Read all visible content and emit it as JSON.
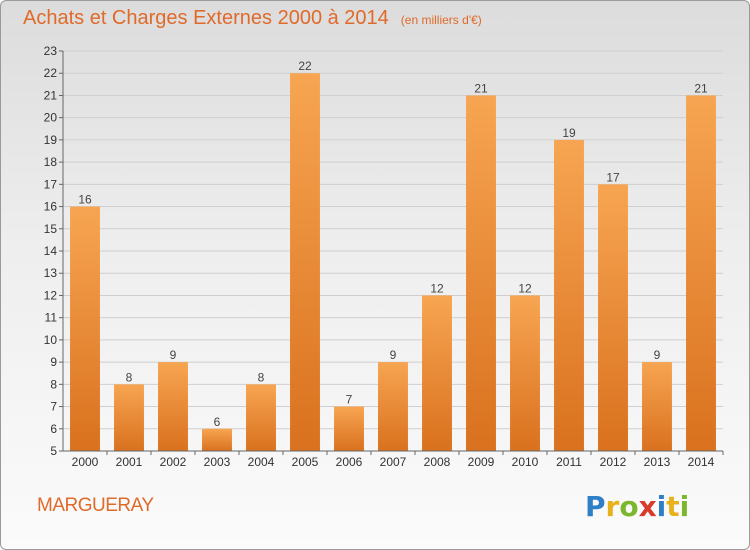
{
  "header": {
    "title": "Achats et Charges Externes 2000 à 2014",
    "subtitle": "(en milliers d'€)"
  },
  "commune": "MARGUERAY",
  "logo": {
    "text": "Proxiti",
    "letters": [
      {
        "ch": "P",
        "color": "#2f7fc8"
      },
      {
        "ch": "r",
        "color": "#e8b21c"
      },
      {
        "ch": "o",
        "color": "#7bb62d"
      },
      {
        "ch": "x",
        "color": "#d63b2b"
      },
      {
        "ch": "i",
        "color": "#2f7fc8"
      },
      {
        "ch": "t",
        "color": "#e8b21c"
      },
      {
        "ch": "i",
        "color": "#7bb62d"
      }
    ]
  },
  "colors": {
    "accent": "#e06a2a",
    "bar_light": "#f7a552",
    "bar_dark": "#d9711e"
  },
  "chart_data": {
    "type": "bar",
    "title": "Achats et Charges Externes 2000 à 2014",
    "subtitle": "(en milliers d'€)",
    "categories": [
      "2000",
      "2001",
      "2002",
      "2003",
      "2004",
      "2005",
      "2006",
      "2007",
      "2008",
      "2009",
      "2010",
      "2011",
      "2012",
      "2013",
      "2014"
    ],
    "values": [
      16,
      8,
      9,
      6,
      8,
      22,
      7,
      9,
      12,
      21,
      12,
      19,
      17,
      9,
      21
    ],
    "xlabel": "",
    "ylabel": "",
    "ylim": [
      5,
      23
    ],
    "yticks": [
      5,
      6,
      7,
      8,
      9,
      10,
      11,
      12,
      13,
      14,
      15,
      16,
      17,
      18,
      19,
      20,
      21,
      22,
      23
    ],
    "grid": true,
    "data_labels": true
  }
}
